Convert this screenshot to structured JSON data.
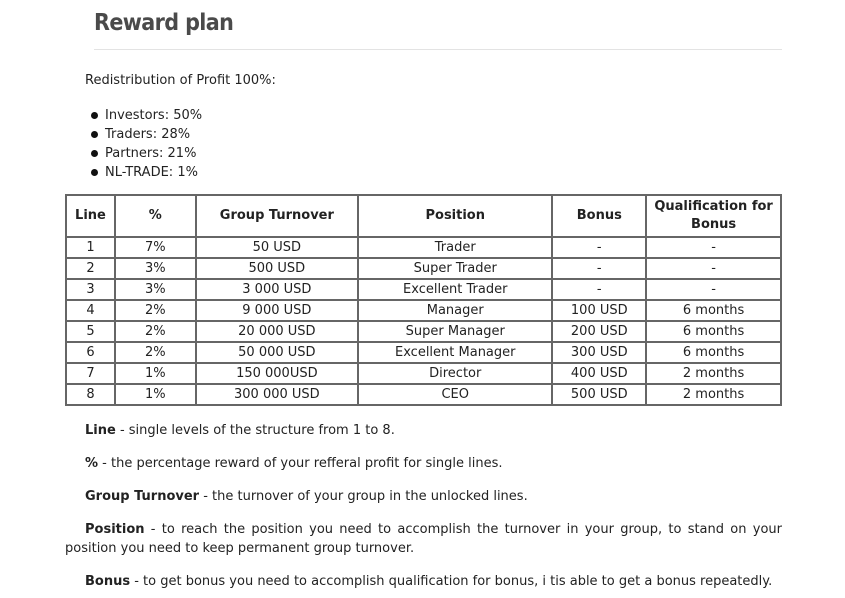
{
  "title": "Reward plan",
  "intro": "Redistribution of Profit 100%:",
  "distribution": [
    "Investors: 50%",
    "Traders: 28%",
    "Partners: 21%",
    "NL-TRADE: 1%"
  ],
  "table": {
    "headers": [
      "Line",
      "%",
      "Group Turnover",
      "Position",
      "Bonus",
      "Qualification for Bonus"
    ],
    "rows": [
      [
        "1",
        "7%",
        "50 USD",
        "Trader",
        "-",
        "-"
      ],
      [
        "2",
        "3%",
        "500 USD",
        "Super Trader",
        "-",
        "-"
      ],
      [
        "3",
        "3%",
        "3 000 USD",
        "Excellent Trader",
        "-",
        "-"
      ],
      [
        "4",
        "2%",
        "9 000 USD",
        "Manager",
        "100 USD",
        "6 months"
      ],
      [
        "5",
        "2%",
        "20 000 USD",
        "Super Manager",
        "200 USD",
        "6 months"
      ],
      [
        "6",
        "2%",
        "50 000 USD",
        "Excellent Manager",
        "300 USD",
        "6 months"
      ],
      [
        "7",
        "1%",
        "150 000USD",
        "Director",
        "400 USD",
        "2 months"
      ],
      [
        "8",
        "1%",
        "300 000 USD",
        "CEO",
        "500 USD",
        "2 months"
      ]
    ]
  },
  "definitions": [
    {
      "term": "Line",
      "text": " - single levels of the structure from 1 to 8."
    },
    {
      "term": "%",
      "text": " - the percentage reward of your refferal profit for single lines."
    },
    {
      "term": "Group Turnover",
      "text": " - the turnover of your group in the unlocked lines."
    },
    {
      "term": "Position",
      "text": " - to reach the position you need to accomplish the turnover in your group, to stand on your position you need to keep permanent group turnover."
    },
    {
      "term": "Bonus",
      "text": " - to get bonus you need to accomplish qualification for bonus, i tis able to get a bonus repeatedly."
    }
  ]
}
